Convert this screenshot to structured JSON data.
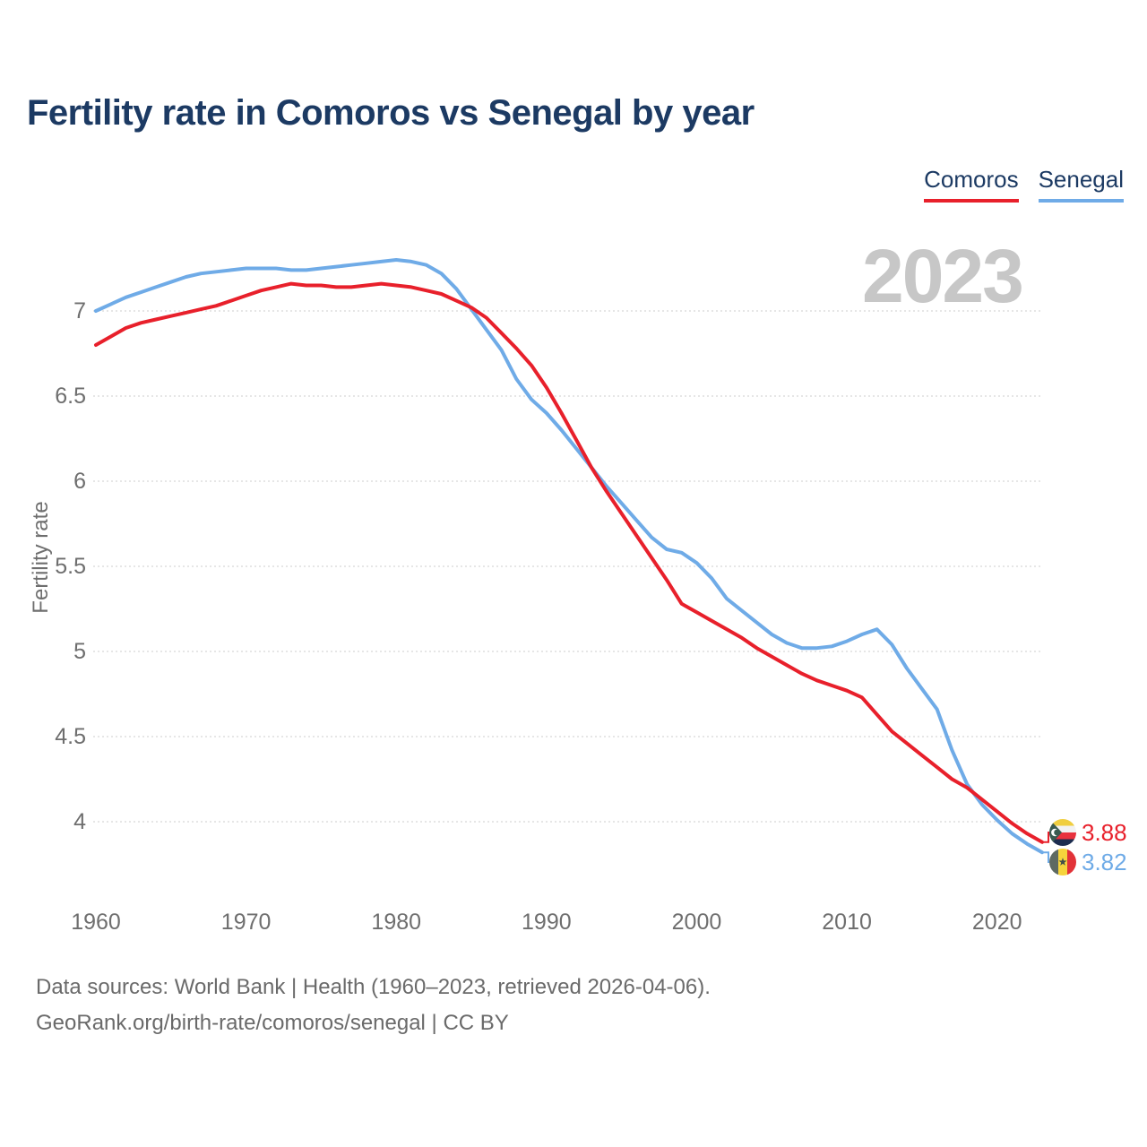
{
  "header": {
    "title": "Fertility rate in Comoros vs Senegal by year"
  },
  "chart_data": {
    "type": "line",
    "title": "Fertility rate in Comoros vs Senegal by year",
    "xlabel": "",
    "ylabel": "Fertility rate",
    "watermark": "2023",
    "grid": true,
    "legend_position": "top-right",
    "x_range": [
      1960,
      2023
    ],
    "xticks": [
      1960,
      1970,
      1980,
      1990,
      2000,
      2010,
      2020
    ],
    "yticks": [
      7,
      6.5,
      6,
      5.5,
      5,
      4.5,
      4
    ],
    "ylim": [
      3.6,
      7.45
    ],
    "series": [
      {
        "name": "Comoros",
        "color": "#E8202B",
        "end_label": "3.88",
        "flag_icon": "comoros-flag-icon",
        "values": [
          6.8,
          6.85,
          6.9,
          6.93,
          6.95,
          6.97,
          6.99,
          7.01,
          7.03,
          7.06,
          7.09,
          7.12,
          7.14,
          7.16,
          7.15,
          7.15,
          7.14,
          7.14,
          7.15,
          7.16,
          7.15,
          7.14,
          7.12,
          7.1,
          7.06,
          7.02,
          6.96,
          6.87,
          6.78,
          6.68,
          6.55,
          6.4,
          6.24,
          6.08,
          5.94,
          5.81,
          5.68,
          5.55,
          5.42,
          5.28,
          5.23,
          5.18,
          5.13,
          5.08,
          5.02,
          4.97,
          4.92,
          4.87,
          4.83,
          4.8,
          4.77,
          4.73,
          4.63,
          4.53,
          4.46,
          4.39,
          4.32,
          4.25,
          4.2,
          4.13,
          4.06,
          3.99,
          3.93,
          3.88
        ]
      },
      {
        "name": "Senegal",
        "color": "#6FABE7",
        "end_label": "3.82",
        "flag_icon": "senegal-flag-icon",
        "values": [
          7.0,
          7.04,
          7.08,
          7.11,
          7.14,
          7.17,
          7.2,
          7.22,
          7.23,
          7.24,
          7.25,
          7.25,
          7.25,
          7.24,
          7.24,
          7.25,
          7.26,
          7.27,
          7.28,
          7.29,
          7.3,
          7.29,
          7.27,
          7.22,
          7.13,
          7.01,
          6.89,
          6.77,
          6.6,
          6.48,
          6.4,
          6.3,
          6.19,
          6.08,
          5.97,
          5.87,
          5.77,
          5.67,
          5.6,
          5.58,
          5.52,
          5.43,
          5.31,
          5.24,
          5.17,
          5.1,
          5.05,
          5.02,
          5.02,
          5.03,
          5.06,
          5.1,
          5.13,
          5.04,
          4.9,
          4.78,
          4.66,
          4.42,
          4.22,
          4.1,
          4.01,
          3.93,
          3.87,
          3.82
        ]
      }
    ]
  },
  "colors": {
    "title": "#1C3A63",
    "axis_text": "#6E6E6E",
    "grid": "#DEDEDE",
    "watermark": "#C7C7C7",
    "footer_text": "#6A6A6A"
  },
  "footer": {
    "line1": "Data sources: World Bank | Health (1960–2023, retrieved 2026-04-06).",
    "line2": "GeoRank.org/birth-rate/comoros/senegal | CC BY"
  }
}
